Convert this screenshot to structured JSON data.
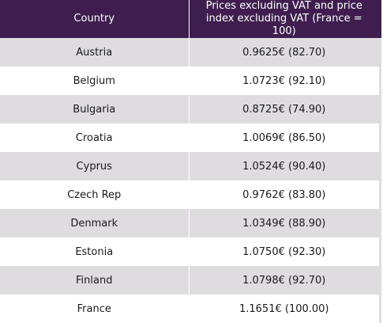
{
  "table": {
    "headers": {
      "country": "Country",
      "price": "Prices excluding VAT and price index excluding VAT (France = 100)"
    },
    "rows": [
      {
        "country": "Austria",
        "price": "0.9625€ (82.70)"
      },
      {
        "country": "Belgium",
        "price": "1.0723€ (92.10)"
      },
      {
        "country": "Bulgaria",
        "price": "0.8725€ (74.90)"
      },
      {
        "country": "Croatia",
        "price": "1.0069€ (86.50)"
      },
      {
        "country": "Cyprus",
        "price": "1.0524€ (90.40)"
      },
      {
        "country": "Czech Rep",
        "price": "0.9762€ (83.80)"
      },
      {
        "country": "Denmark",
        "price": "1.0349€ (88.90)"
      },
      {
        "country": "Estonia",
        "price": "1.0750€ (92.30)"
      },
      {
        "country": "Finland",
        "price": "1.0798€ (92.70)"
      },
      {
        "country": "France",
        "price": "1.1651€ (100.00)"
      }
    ]
  },
  "colors": {
    "header_background": "#3f1e4f",
    "header_text": "#ffffff",
    "row_shade": "#dedcdf",
    "row_plain": "#ffffff"
  }
}
